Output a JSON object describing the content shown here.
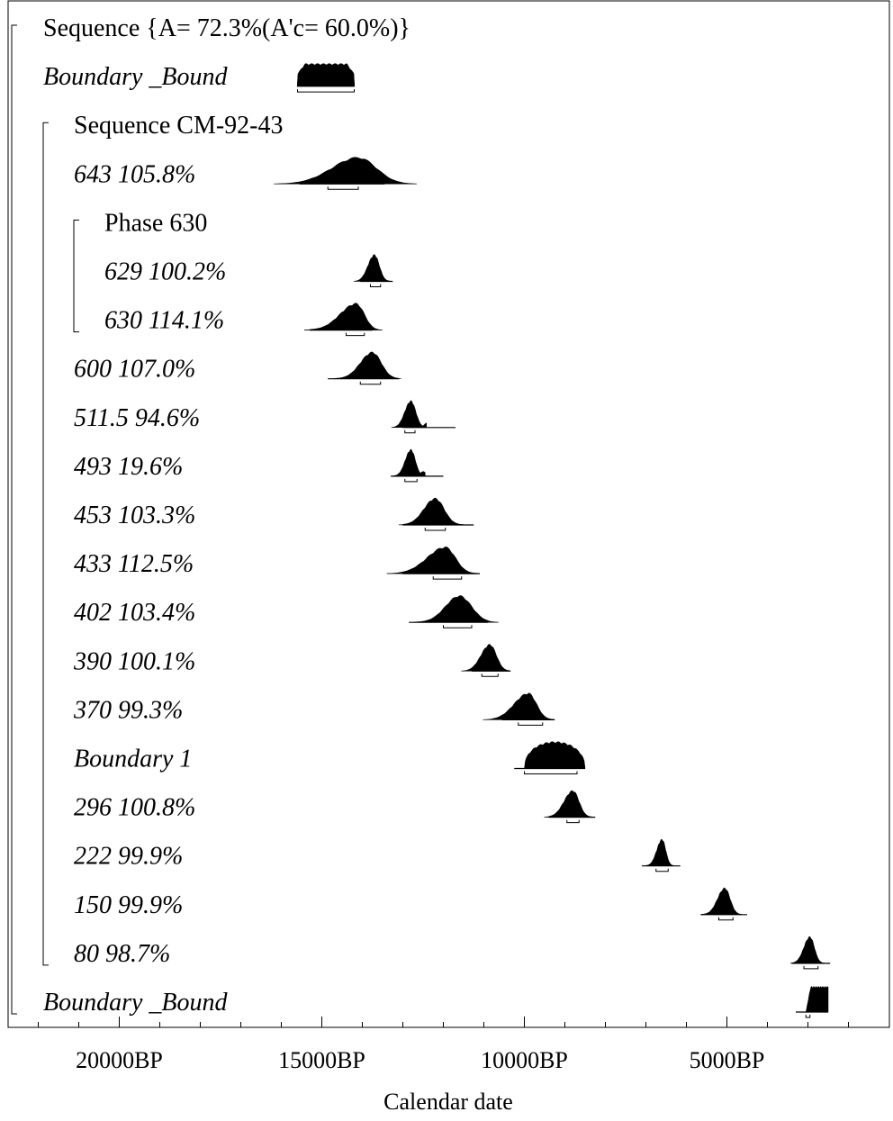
{
  "chart_data": {
    "type": "oxcal-multiplot",
    "xlabel": "Calendar date",
    "x_direction": "reversed (older dates on the left)",
    "xlim_BP": [
      22500,
      100
    ],
    "tick_labels": [
      "20000BP",
      "15000BP",
      "10000BP",
      "5000BP"
    ],
    "tick_values_BP": [
      20000,
      15000,
      10000,
      5000
    ],
    "minor_tick_step_BP": 1000,
    "rows": [
      {
        "label": "Sequence  {A= 72.3%(A'c= 60.0%)}",
        "italic": false,
        "indent": 0
      },
      {
        "label": "Boundary _Bound",
        "italic": true,
        "indent": 0,
        "kind": "boundary-flat",
        "from_BP": 15600,
        "to_BP": 14200,
        "range_BP": [
          15600,
          14200
        ]
      },
      {
        "label": "Sequence CM-92-43",
        "italic": false,
        "indent": 1
      },
      {
        "label": "643  105.8%",
        "italic": true,
        "indent": 1,
        "kind": "peak",
        "peak_BP": 14100,
        "spread_BP": 450,
        "tail_BP": 650,
        "line_from_BP": 15550,
        "line_to_BP": 13450,
        "range_BP": [
          14850,
          14100
        ]
      },
      {
        "label": "Phase 630",
        "italic": false,
        "indent": 2
      },
      {
        "label": "629  100.2%",
        "italic": true,
        "indent": 2,
        "kind": "peak",
        "peak_BP": 13700,
        "spread_BP": 120,
        "tail_BP": 160,
        "line_from_BP": 14050,
        "line_to_BP": 13250,
        "range_BP": [
          13800,
          13550
        ]
      },
      {
        "label": "630  114.1%",
        "italic": true,
        "indent": 2,
        "kind": "peak",
        "peak_BP": 14150,
        "spread_BP": 200,
        "tail_BP": 400,
        "line_from_BP": 15300,
        "line_to_BP": 13750,
        "range_BP": [
          14400,
          13950
        ]
      },
      {
        "label": "600  107.0%",
        "italic": true,
        "indent": 1,
        "kind": "peak",
        "peak_BP": 13750,
        "spread_BP": 220,
        "tail_BP": 300,
        "line_from_BP": 14850,
        "line_to_BP": 13100,
        "range_BP": [
          14050,
          13550
        ]
      },
      {
        "label": "511.5   94.6%",
        "italic": true,
        "indent": 1,
        "kind": "peak",
        "peak_BP": 12800,
        "spread_BP": 120,
        "tail_BP": 150,
        "secondary_peak_BP": 12400,
        "line_from_BP": 13000,
        "line_to_BP": 11700,
        "range_BP": [
          12950,
          12700
        ]
      },
      {
        "label": "493   19.6%",
        "italic": true,
        "indent": 1,
        "kind": "peak",
        "peak_BP": 12800,
        "spread_BP": 110,
        "tail_BP": 140,
        "secondary_peak_BP": 12500,
        "line_from_BP": 13300,
        "line_to_BP": 12000,
        "range_BP": [
          12950,
          12650
        ]
      },
      {
        "label": "453  103.3%",
        "italic": true,
        "indent": 1,
        "kind": "peak",
        "peak_BP": 12200,
        "spread_BP": 220,
        "tail_BP": 280,
        "line_from_BP": 13000,
        "line_to_BP": 11250,
        "range_BP": [
          12450,
          11950
        ]
      },
      {
        "label": "433  112.5%",
        "italic": true,
        "indent": 1,
        "kind": "peak",
        "peak_BP": 11950,
        "spread_BP": 250,
        "tail_BP": 450,
        "line_from_BP": 13000,
        "line_to_BP": 11100,
        "range_BP": [
          12250,
          11550
        ]
      },
      {
        "label": "402  103.4%",
        "italic": true,
        "indent": 1,
        "kind": "peak",
        "peak_BP": 11600,
        "spread_BP": 300,
        "tail_BP": 350,
        "line_from_BP": 12850,
        "line_to_BP": 10900,
        "range_BP": [
          12000,
          11300
        ]
      },
      {
        "label": "390  100.1%",
        "italic": true,
        "indent": 1,
        "kind": "peak",
        "peak_BP": 10850,
        "spread_BP": 160,
        "tail_BP": 220,
        "line_from_BP": 11300,
        "line_to_BP": 10350,
        "range_BP": [
          11050,
          10650
        ]
      },
      {
        "label": "370   99.3%",
        "italic": true,
        "indent": 1,
        "kind": "peak",
        "peak_BP": 9900,
        "spread_BP": 200,
        "tail_BP": 350,
        "line_from_BP": 10550,
        "line_to_BP": 9250,
        "range_BP": [
          10150,
          9550
        ]
      },
      {
        "label": "Boundary 1",
        "italic": true,
        "indent": 1,
        "kind": "boundary-dome",
        "from_BP": 10000,
        "to_BP": 8500,
        "line_from_BP": 10250,
        "line_to_BP": 8500,
        "range_BP": [
          10000,
          8700
        ]
      },
      {
        "label": "296  100.8%",
        "italic": true,
        "indent": 1,
        "kind": "peak",
        "peak_BP": 8800,
        "spread_BP": 150,
        "tail_BP": 220,
        "line_from_BP": 9400,
        "line_to_BP": 8250,
        "range_BP": [
          8950,
          8650
        ]
      },
      {
        "label": "222   99.9%",
        "italic": true,
        "indent": 1,
        "kind": "peak",
        "peak_BP": 6600,
        "spread_BP": 90,
        "tail_BP": 130,
        "line_from_BP": 7100,
        "line_to_BP": 6150,
        "range_BP": [
          6750,
          6450
        ]
      },
      {
        "label": "150   99.9%",
        "italic": true,
        "indent": 1,
        "kind": "peak",
        "peak_BP": 5050,
        "spread_BP": 130,
        "tail_BP": 180,
        "line_from_BP": 5650,
        "line_to_BP": 4500,
        "range_BP": [
          5200,
          4850
        ]
      },
      {
        "label": "80   98.7%",
        "italic": true,
        "indent": 1,
        "kind": "peak",
        "peak_BP": 2950,
        "spread_BP": 110,
        "tail_BP": 150,
        "line_from_BP": 3400,
        "line_to_BP": 2450,
        "range_BP": [
          3100,
          2750
        ]
      },
      {
        "label": "Boundary _Bound",
        "italic": true,
        "indent": 0,
        "kind": "boundary-wall",
        "from_BP": 3050,
        "to_BP": 2500,
        "line_from_BP": 3300,
        "line_to_BP": 2500,
        "range_BP": [
          3050,
          2950
        ]
      }
    ]
  }
}
